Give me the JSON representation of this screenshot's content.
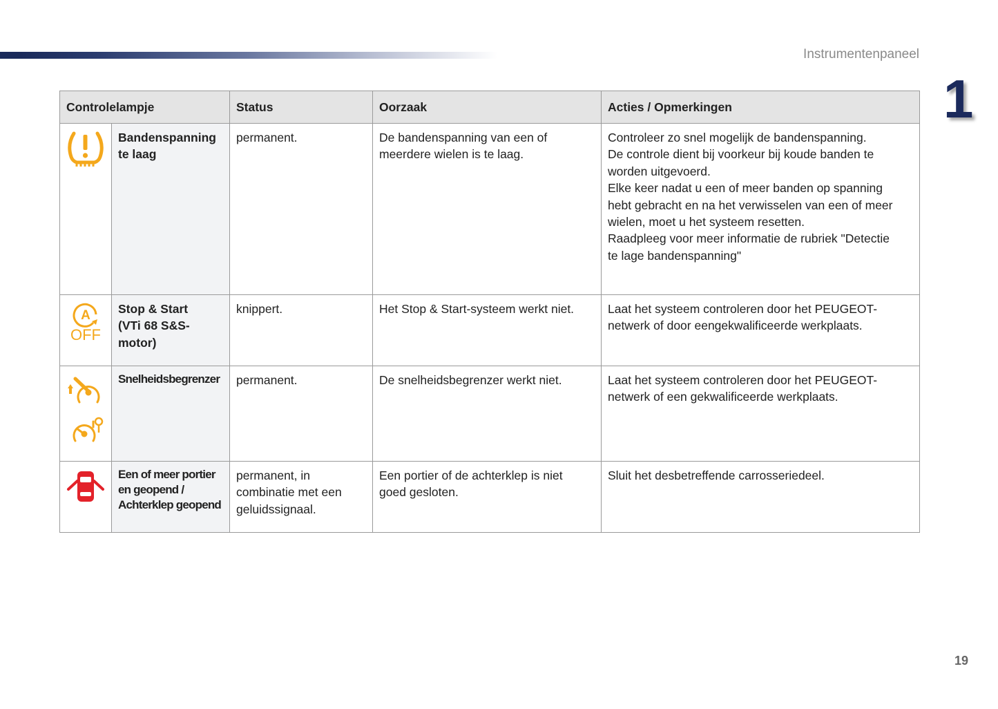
{
  "header": {
    "section_title": "Instrumentenpaneel",
    "chapter": "1"
  },
  "footer": {
    "page_number": "19"
  },
  "colors": {
    "amber": "#f4a81c",
    "red": "#e3222a",
    "navy": "#1b2a5c"
  },
  "table": {
    "columns": [
      "Controlelampje",
      "Status",
      "Oorzaak",
      "Acties / Opmerkingen"
    ],
    "rows": [
      {
        "icon": "tyre-pressure-warning-icon",
        "name": [
          "Bandenspanning",
          "te laag"
        ],
        "status": [
          "permanent."
        ],
        "cause": [
          "De bandenspanning van een of",
          "meerdere wielen is te laag."
        ],
        "actions": [
          "Controleer zo snel mogelijk de bandenspanning.",
          "De controle dient bij voorkeur bij koude banden te",
          "worden uitgevoerd.",
          "Elke keer nadat u een of meer banden op spanning",
          "hebt gebracht en na het verwisselen van een of meer",
          "wielen, moet u het systeem resetten.",
          "Raadpleeg voor meer informatie de rubriek \"Detectie",
          "te lage bandenspanning\""
        ]
      },
      {
        "icon": "stop-start-off-icon",
        "icon_text": [
          "A",
          "OFF"
        ],
        "name": [
          "Stop & Start",
          "(VTi 68 S&S-",
          "motor)"
        ],
        "status": [
          "knippert."
        ],
        "cause": [
          "Het Stop & Start-systeem werkt niet."
        ],
        "actions": [
          "Laat het systeem controleren door het PEUGEOT-",
          "netwerk of door eengekwalificeerde werkplaats."
        ]
      },
      {
        "icon": "speed-limiter-icon",
        "name": [
          "Snelheidsbegrenzer"
        ],
        "status": [
          "permanent."
        ],
        "cause": [
          "De snelheidsbegrenzer werkt niet."
        ],
        "actions": [
          "Laat het systeem controleren door het PEUGEOT-",
          "netwerk of een gekwalificeerde werkplaats."
        ]
      },
      {
        "icon": "door-open-icon",
        "name": [
          "Een of meer portier",
          "en geopend /",
          "Achterklep geopend"
        ],
        "status": [
          "permanent, in",
          "combinatie met een",
          "geluidssignaal."
        ],
        "cause": [
          "Een portier of de achterklep is niet",
          "goed gesloten."
        ],
        "actions": [
          "Sluit het desbetreffende carrosseriedeel."
        ]
      }
    ]
  }
}
